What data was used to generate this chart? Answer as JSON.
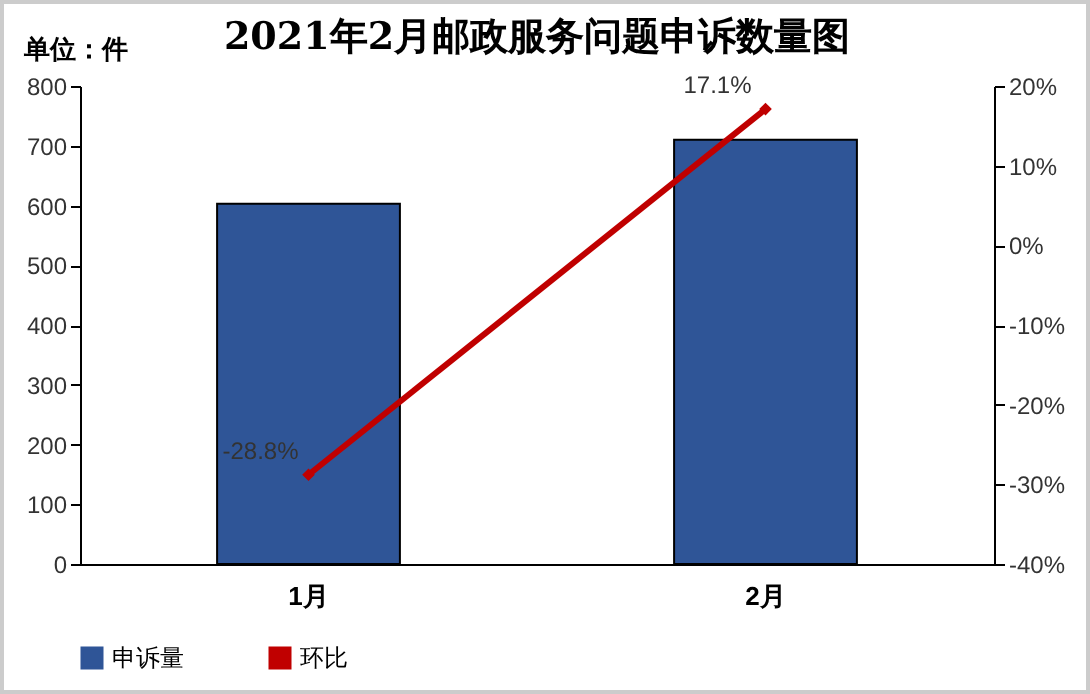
{
  "chart_data": {
    "type": "bar",
    "title": "2021年2月邮政服务问题申诉数量图",
    "annotations": [
      "单位：件"
    ],
    "categories": [
      "1月",
      "2月"
    ],
    "series": [
      {
        "name": "申诉量",
        "color": "#2f5597",
        "values": [
          603,
          710
        ]
      },
      {
        "name": "环比",
        "type": "line",
        "axis": "y2",
        "color": "#c00000",
        "values": [
          -28.8,
          17.1
        ],
        "value_labels": [
          "-28.8%",
          "17.1%"
        ]
      }
    ],
    "ylim": [
      0,
      800
    ],
    "yticks": [
      0,
      100,
      200,
      300,
      400,
      500,
      600,
      700,
      800
    ],
    "y2lim": [
      -40,
      20
    ],
    "y2ticks": [
      {
        "value": -40,
        "label": "-40%"
      },
      {
        "value": -30,
        "label": "-30%"
      },
      {
        "value": -20,
        "label": "-20%"
      },
      {
        "value": -10,
        "label": "-10%"
      },
      {
        "value": 0,
        "label": "0%"
      },
      {
        "value": 10,
        "label": "10%"
      },
      {
        "value": 20,
        "label": "20%"
      }
    ],
    "legend": "bottom",
    "marker": "diamond",
    "grid": false
  }
}
